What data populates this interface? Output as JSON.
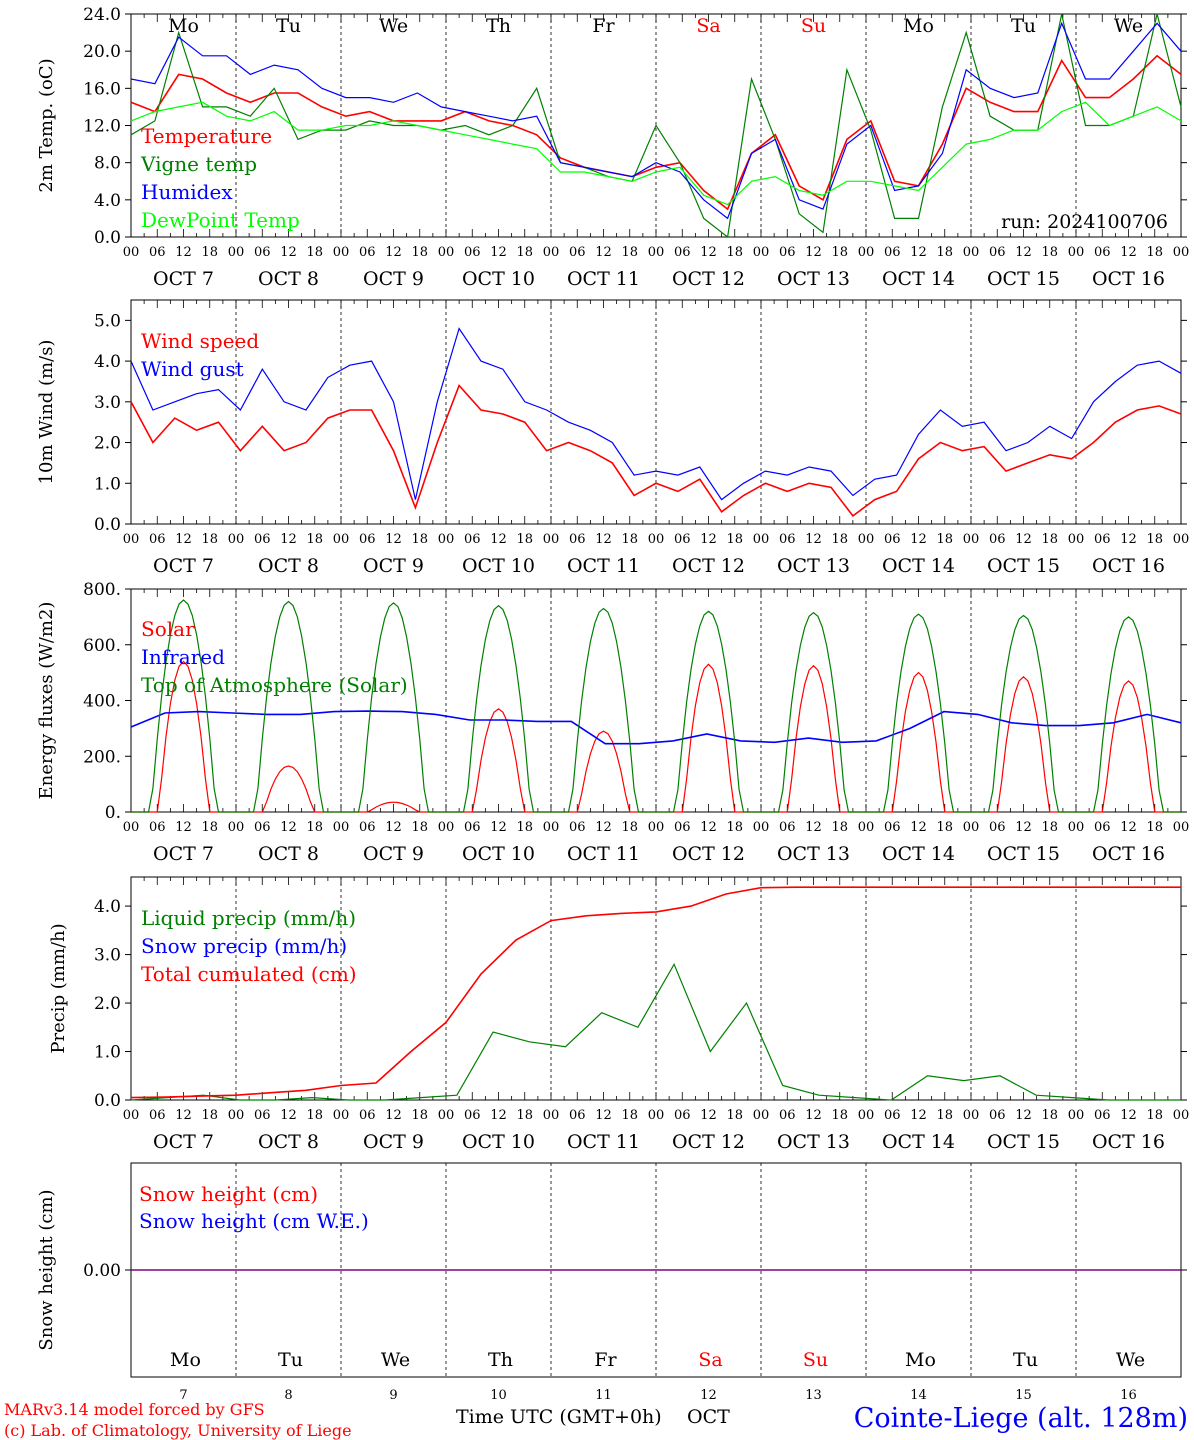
{
  "run_label": "run: 2024100706",
  "location": "Cointe-Liege (alt. 128m)",
  "credits": [
    "MARv3.14 model forced by GFS",
    "(c) Lab. of Climatology, University of Liege"
  ],
  "xaxis": {
    "hour_ticks": [
      "00",
      "06",
      "12",
      "18"
    ],
    "end_tick": "00",
    "month": "OCT",
    "days": [
      7,
      8,
      9,
      10,
      11,
      12,
      13,
      14,
      15,
      16
    ],
    "day_labels": [
      "OCT  7",
      "OCT  8",
      "OCT  9",
      "OCT 10",
      "OCT 11",
      "OCT 12",
      "OCT 13",
      "OCT 14",
      "OCT 15",
      "OCT 16"
    ],
    "weekdays": [
      "Mo",
      "Tu",
      "We",
      "Th",
      "Fr",
      "Sa",
      "Su",
      "Mo",
      "Tu",
      "We"
    ],
    "weekend_color": "#ff0000",
    "bottom_label": "Time UTC (GMT+0h)",
    "bottom_month": "OCT"
  },
  "colors": {
    "red": "#ff0000",
    "green": "#008000",
    "blue": "#0000ff",
    "lightgreen": "#00ff00",
    "purple": "#800080"
  },
  "chart_data": [
    {
      "type": "line",
      "ylabel": "2m Temp. (oC)",
      "ylim": [
        0,
        24
      ],
      "yticks": [
        "0.0",
        "4.0",
        "8.0",
        "12.0",
        "16.0",
        "20.0",
        "24.0"
      ],
      "x_hours_step": 6,
      "series": [
        {
          "name": "Temperature",
          "color": "#ff0000",
          "values": [
            14.5,
            13.5,
            17.5,
            17.0,
            15.5,
            14.5,
            15.5,
            15.5,
            14.0,
            13.0,
            13.5,
            12.5,
            12.5,
            12.5,
            13.5,
            12.5,
            12.0,
            11.0,
            8.5,
            7.5,
            7.0,
            6.5,
            7.5,
            8.0,
            5.0,
            3.0,
            9.0,
            11.0,
            5.5,
            4.0,
            10.5,
            12.5,
            6.0,
            5.5,
            10.0,
            16.0,
            14.5,
            13.5,
            13.5,
            19.0,
            15.0,
            15.0,
            17.0,
            19.5,
            17.5
          ]
        },
        {
          "name": "Vigne temp",
          "color": "#008000",
          "values": [
            11.0,
            12.5,
            22.0,
            14.0,
            14.0,
            13.0,
            16.0,
            10.5,
            11.5,
            11.5,
            12.5,
            12.0,
            12.0,
            11.5,
            12.0,
            11.0,
            12.0,
            16.0,
            8.0,
            7.5,
            6.5,
            6.0,
            12.0,
            8.0,
            2.0,
            0.0,
            17.0,
            10.5,
            2.5,
            0.5,
            18.0,
            11.5,
            2.0,
            2.0,
            14.0,
            22.0,
            13.0,
            11.5,
            11.5,
            24.0,
            12.0,
            12.0,
            13.0,
            24.0,
            14.0
          ]
        },
        {
          "name": "Humidex",
          "color": "#0000ff",
          "values": [
            17.0,
            16.5,
            21.5,
            19.5,
            19.5,
            17.5,
            18.5,
            18.0,
            16.0,
            15.0,
            15.0,
            14.5,
            15.5,
            14.0,
            13.5,
            13.0,
            12.5,
            13.0,
            8.0,
            7.5,
            7.0,
            6.5,
            8.0,
            7.0,
            4.0,
            2.0,
            9.0,
            10.5,
            4.0,
            3.0,
            10.0,
            12.0,
            5.0,
            5.5,
            9.0,
            18.0,
            16.0,
            15.0,
            15.5,
            23.0,
            17.0,
            17.0,
            20.0,
            23.0,
            20.0
          ]
        },
        {
          "name": "DewPoint Temp",
          "color": "#00ff00",
          "values": [
            12.5,
            13.5,
            14.0,
            14.5,
            13.0,
            12.5,
            13.5,
            11.5,
            11.5,
            12.0,
            12.0,
            12.5,
            12.0,
            11.5,
            11.0,
            10.5,
            10.0,
            9.5,
            7.0,
            7.0,
            6.5,
            6.0,
            7.0,
            7.5,
            4.5,
            3.5,
            6.0,
            6.5,
            5.0,
            4.5,
            6.0,
            6.0,
            5.5,
            5.0,
            7.5,
            10.0,
            10.5,
            11.5,
            11.5,
            13.5,
            14.5,
            12.0,
            13.0,
            14.0,
            12.5
          ]
        }
      ]
    },
    {
      "type": "line",
      "ylabel": "10m Wind (m/s)",
      "ylim": [
        0,
        5.5
      ],
      "yticks": [
        "0.0",
        "1.0",
        "2.0",
        "3.0",
        "4.0",
        "5.0"
      ],
      "x_hours_step": 6,
      "series": [
        {
          "name": "Wind speed",
          "color": "#ff0000",
          "values": [
            3.0,
            2.0,
            2.6,
            2.3,
            2.5,
            1.8,
            2.4,
            1.8,
            2.0,
            2.6,
            2.8,
            2.8,
            1.8,
            0.4,
            2.0,
            3.4,
            2.8,
            2.7,
            2.5,
            1.8,
            2.0,
            1.8,
            1.5,
            0.7,
            1.0,
            0.8,
            1.1,
            0.3,
            0.7,
            1.0,
            0.8,
            1.0,
            0.9,
            0.2,
            0.6,
            0.8,
            1.6,
            2.0,
            1.8,
            1.9,
            1.3,
            1.5,
            1.7,
            1.6,
            2.0,
            2.5,
            2.8,
            2.9,
            2.7
          ]
        },
        {
          "name": "Wind gust",
          "color": "#0000ff",
          "values": [
            4.0,
            2.8,
            3.0,
            3.2,
            3.3,
            2.8,
            3.8,
            3.0,
            2.8,
            3.6,
            3.9,
            4.0,
            3.0,
            0.6,
            3.0,
            4.8,
            4.0,
            3.8,
            3.0,
            2.8,
            2.5,
            2.3,
            2.0,
            1.2,
            1.3,
            1.2,
            1.4,
            0.6,
            1.0,
            1.3,
            1.2,
            1.4,
            1.3,
            0.7,
            1.1,
            1.2,
            2.2,
            2.8,
            2.4,
            2.5,
            1.8,
            2.0,
            2.4,
            2.1,
            3.0,
            3.5,
            3.9,
            4.0,
            3.7
          ]
        }
      ]
    },
    {
      "type": "line",
      "ylabel": "Energy fluxes (W/m2)",
      "ylim": [
        0,
        800
      ],
      "yticks": [
        "0.",
        "200.",
        "400.",
        "600.",
        "800."
      ],
      "days_gaussian": true,
      "series": [
        {
          "name": "Solar",
          "color": "#ff0000",
          "daily_peak": [
            540,
            165,
            35,
            370,
            290,
            530,
            525,
            500,
            485,
            470
          ]
        },
        {
          "name": "Infrared",
          "color": "#0000ff",
          "values": [
            305,
            355,
            360,
            355,
            350,
            350,
            360,
            362,
            360,
            350,
            330,
            330,
            325,
            325,
            245,
            245,
            255,
            280,
            255,
            250,
            265,
            250,
            255,
            300,
            360,
            350,
            320,
            310,
            310,
            320,
            350,
            320
          ]
        },
        {
          "name": "Top of Atmosphere (Solar)",
          "color": "#008000",
          "daily_peak": [
            760,
            755,
            750,
            740,
            730,
            720,
            715,
            710,
            705,
            700
          ]
        }
      ]
    },
    {
      "type": "line",
      "ylabel": "Precip (mm/h)",
      "ylim": [
        0,
        4.6
      ],
      "yticks": [
        "0.0",
        "1.0",
        "2.0",
        "3.0",
        "4.0"
      ],
      "series": [
        {
          "name": "Liquid precip (mm/h)",
          "color": "#008000",
          "values": [
            0.0,
            0.05,
            0.1,
            0.0,
            0.0,
            0.05,
            0.0,
            0.0,
            0.05,
            0.1,
            1.4,
            1.2,
            1.1,
            1.8,
            1.5,
            2.8,
            1.0,
            2.0,
            0.3,
            0.1,
            0.05,
            0.0,
            0.5,
            0.4,
            0.5,
            0.1,
            0.05,
            0.0,
            0.0,
            0.0
          ]
        },
        {
          "name": "Snow precip (mm/h)",
          "color": "#0000ff",
          "values": []
        },
        {
          "name": "Total cumulated (cm)",
          "color": "#ff0000",
          "values": [
            0.05,
            0.06,
            0.08,
            0.1,
            0.15,
            0.2,
            0.3,
            0.35,
            1.0,
            1.6,
            2.6,
            3.3,
            3.7,
            3.8,
            3.85,
            3.88,
            4.0,
            4.25,
            4.38,
            4.39,
            4.39,
            4.39,
            4.39,
            4.39,
            4.39,
            4.39,
            4.39,
            4.39,
            4.39,
            4.39,
            4.39
          ]
        }
      ]
    },
    {
      "type": "line",
      "ylabel": "Snow height (cm)",
      "yticks": [
        "0.00"
      ],
      "series": [
        {
          "name": "Snow height (cm)",
          "color": "#ff0000",
          "values": [
            0,
            0
          ]
        },
        {
          "name": "Snow height (cm W.E.)",
          "color": "#0000ff",
          "values": [
            0,
            0
          ]
        }
      ]
    }
  ]
}
